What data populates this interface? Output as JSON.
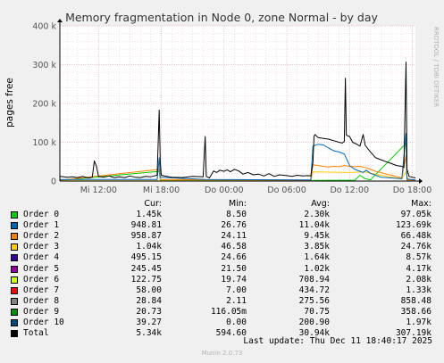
{
  "colors": {
    "background": "#f0f0f0",
    "plot_bg": "#ffffff",
    "grid_major": "#e8b8b8",
    "grid_minor": "#f0d0d0",
    "axis": "#000000",
    "title": "#333333",
    "side_text": "#b0b0b0",
    "footer": "#b4b4b4"
  },
  "chart_data": {
    "type": "line",
    "title": "Memory fragmentation in Node 0, zone Normal - by day",
    "ylabel": "pages free",
    "xlabel": "",
    "ylim": [
      0,
      400000
    ],
    "xlim_hours_since_mi_1200": [
      -3.7,
      30.3
    ],
    "y_ticks": [
      {
        "value": 0,
        "label": "0"
      },
      {
        "value": 100000,
        "label": "100 k"
      },
      {
        "value": 200000,
        "label": "200 k"
      },
      {
        "value": 300000,
        "label": "300 k"
      },
      {
        "value": 400000,
        "label": "400 k"
      }
    ],
    "x_ticks": [
      {
        "hour": 0,
        "label": "Mi 12:00"
      },
      {
        "hour": 6,
        "label": "Mi 18:00"
      },
      {
        "hour": 12,
        "label": "Do 00:00"
      },
      {
        "hour": 18,
        "label": "Do 06:00"
      },
      {
        "hour": 24,
        "label": "Do 12:00"
      },
      {
        "hour": 30,
        "label": "Do 18:00"
      }
    ],
    "grid": true,
    "series": [
      {
        "name": "Total",
        "color": "#000000",
        "width": 1,
        "points": [
          [
            -3.7,
            12000
          ],
          [
            -3.0,
            10000
          ],
          [
            -2.5,
            11000
          ],
          [
            -2.0,
            9000
          ],
          [
            -1.5,
            12000
          ],
          [
            -1.0,
            8000
          ],
          [
            -0.6,
            10000
          ],
          [
            -0.4,
            52000
          ],
          [
            -0.2,
            38000
          ],
          [
            0.0,
            12000
          ],
          [
            0.5,
            10000
          ],
          [
            1.0,
            13000
          ],
          [
            1.5,
            9000
          ],
          [
            2.0,
            11000
          ],
          [
            2.5,
            9000
          ],
          [
            3.0,
            13000
          ],
          [
            3.5,
            10000
          ],
          [
            4.0,
            9000
          ],
          [
            4.5,
            12000
          ],
          [
            5.0,
            11000
          ],
          [
            5.3,
            13000
          ],
          [
            5.6,
            15000
          ],
          [
            5.8,
            183000
          ],
          [
            5.9,
            48000
          ],
          [
            6.0,
            15000
          ],
          [
            6.5,
            12000
          ],
          [
            7.0,
            10000
          ],
          [
            8.0,
            9000
          ],
          [
            9.0,
            12000
          ],
          [
            10.0,
            11000
          ],
          [
            10.2,
            115000
          ],
          [
            10.3,
            12000
          ],
          [
            10.6,
            8000
          ],
          [
            11.0,
            26000
          ],
          [
            11.3,
            22000
          ],
          [
            11.6,
            28000
          ],
          [
            12.0,
            25000
          ],
          [
            12.3,
            29000
          ],
          [
            12.6,
            24000
          ],
          [
            13.0,
            30000
          ],
          [
            13.4,
            26000
          ],
          [
            13.8,
            18000
          ],
          [
            14.3,
            22000
          ],
          [
            14.8,
            16000
          ],
          [
            15.3,
            18000
          ],
          [
            15.8,
            13000
          ],
          [
            16.3,
            19000
          ],
          [
            16.8,
            12000
          ],
          [
            17.3,
            16000
          ],
          [
            18.0,
            14000
          ],
          [
            18.5,
            12000
          ],
          [
            19.0,
            15000
          ],
          [
            19.5,
            13000
          ],
          [
            20.0,
            14000
          ],
          [
            20.3,
            13000
          ],
          [
            20.5,
            48000
          ],
          [
            20.6,
            115000
          ],
          [
            20.7,
            120000
          ],
          [
            21.0,
            112000
          ],
          [
            21.5,
            110000
          ],
          [
            22.0,
            108000
          ],
          [
            22.5,
            104000
          ],
          [
            23.0,
            100000
          ],
          [
            23.3,
            98000
          ],
          [
            23.5,
            102000
          ],
          [
            23.6,
            265000
          ],
          [
            23.7,
            118000
          ],
          [
            24.0,
            115000
          ],
          [
            24.3,
            100000
          ],
          [
            24.7,
            95000
          ],
          [
            25.0,
            90000
          ],
          [
            25.3,
            120000
          ],
          [
            25.5,
            92000
          ],
          [
            26.0,
            75000
          ],
          [
            26.5,
            60000
          ],
          [
            27.0,
            55000
          ],
          [
            27.5,
            50000
          ],
          [
            28.0,
            45000
          ],
          [
            28.5,
            40000
          ],
          [
            29.0,
            38000
          ],
          [
            29.2,
            35000
          ],
          [
            29.4,
            307000
          ],
          [
            29.5,
            30000
          ],
          [
            29.7,
            12000
          ],
          [
            30.0,
            10000
          ],
          [
            30.3,
            8000
          ]
        ]
      },
      {
        "name": "Order 1",
        "color": "#0066b3",
        "width": 1,
        "points": [
          [
            -3.7,
            4000
          ],
          [
            5.6,
            4000
          ],
          [
            5.8,
            60000
          ],
          [
            5.9,
            10000
          ],
          [
            10.2,
            4000
          ],
          [
            20.3,
            3000
          ],
          [
            20.5,
            90000
          ],
          [
            21.0,
            95000
          ],
          [
            21.5,
            93000
          ],
          [
            22.0,
            85000
          ],
          [
            22.5,
            78000
          ],
          [
            23.0,
            75000
          ],
          [
            23.5,
            70000
          ],
          [
            24.0,
            40000
          ],
          [
            24.5,
            30000
          ],
          [
            25.0,
            25000
          ],
          [
            25.3,
            22000
          ],
          [
            25.6,
            28000
          ],
          [
            26.0,
            20000
          ],
          [
            26.5,
            15000
          ],
          [
            27.0,
            10000
          ],
          [
            28.0,
            8000
          ],
          [
            29.0,
            6000
          ],
          [
            29.4,
            123000
          ],
          [
            29.5,
            5000
          ],
          [
            30.3,
            3000
          ]
        ]
      },
      {
        "name": "Order 2",
        "color": "#ff8000",
        "width": 1,
        "points": [
          [
            -3.7,
            2000
          ],
          [
            5.8,
            30000
          ],
          [
            5.9,
            4000
          ],
          [
            20.3,
            2000
          ],
          [
            20.5,
            42000
          ],
          [
            21.0,
            40000
          ],
          [
            21.5,
            38000
          ],
          [
            22.0,
            36000
          ],
          [
            22.5,
            38000
          ],
          [
            23.0,
            37000
          ],
          [
            23.5,
            40000
          ],
          [
            24.0,
            38000
          ],
          [
            24.5,
            37000
          ],
          [
            25.0,
            38000
          ],
          [
            25.3,
            36000
          ],
          [
            25.6,
            34000
          ],
          [
            26.0,
            30000
          ],
          [
            26.5,
            25000
          ],
          [
            27.0,
            22000
          ],
          [
            27.5,
            18000
          ],
          [
            28.0,
            15000
          ],
          [
            29.0,
            8000
          ],
          [
            29.4,
            66000
          ],
          [
            29.5,
            3000
          ],
          [
            30.3,
            2000
          ]
        ]
      },
      {
        "name": "Order 3",
        "color": "#ffcc00",
        "width": 1,
        "points": [
          [
            -3.7,
            1000
          ],
          [
            20.3,
            1000
          ],
          [
            20.5,
            24000
          ],
          [
            22.0,
            23000
          ],
          [
            24.0,
            22000
          ],
          [
            25.5,
            24000
          ],
          [
            26.0,
            20000
          ],
          [
            27.0,
            15000
          ],
          [
            28.0,
            10000
          ],
          [
            29.0,
            6000
          ],
          [
            29.4,
            24000
          ],
          [
            29.6,
            2000
          ],
          [
            30.3,
            1000
          ]
        ]
      },
      {
        "name": "Order 0",
        "color": "#00cc00",
        "width": 1,
        "points": [
          [
            -3.7,
            1500
          ],
          [
            5.8,
            25000
          ],
          [
            5.9,
            2000
          ],
          [
            20.3,
            1500
          ],
          [
            24.5,
            2000
          ],
          [
            25.0,
            15000
          ],
          [
            25.5,
            6000
          ],
          [
            26.0,
            3000
          ],
          [
            29.4,
            97000
          ],
          [
            29.5,
            2000
          ],
          [
            30.3,
            1500
          ]
        ]
      }
    ]
  },
  "side_text": "RRDTOOL / TOBI OETIKER",
  "legend": {
    "headers": {
      "cur": "Cur:",
      "min": "Min:",
      "avg": "Avg:",
      "max": "Max:"
    },
    "rows": [
      {
        "name": "Order 0",
        "color": "#00cc00",
        "cur": "1.45k",
        "min": "8.50",
        "avg": "2.30k",
        "max": "97.05k"
      },
      {
        "name": "Order 1",
        "color": "#0066b3",
        "cur": "948.81",
        "min": "26.76",
        "avg": "11.04k",
        "max": "123.69k"
      },
      {
        "name": "Order 2",
        "color": "#ff8000",
        "cur": "958.87",
        "min": "24.11",
        "avg": "9.45k",
        "max": "66.48k"
      },
      {
        "name": "Order 3",
        "color": "#ffcc00",
        "cur": "1.04k",
        "min": "46.58",
        "avg": "3.85k",
        "max": "24.76k"
      },
      {
        "name": "Order 4",
        "color": "#330099",
        "cur": "495.15",
        "min": "24.66",
        "avg": "1.64k",
        "max": "8.57k"
      },
      {
        "name": "Order 5",
        "color": "#990099",
        "cur": "245.45",
        "min": "21.50",
        "avg": "1.02k",
        "max": "4.17k"
      },
      {
        "name": "Order 6",
        "color": "#ccff00",
        "cur": "122.75",
        "min": "19.74",
        "avg": "708.94",
        "max": "2.08k"
      },
      {
        "name": "Order 7",
        "color": "#ff0000",
        "cur": "58.00",
        "min": "7.00",
        "avg": "434.72",
        "max": "1.33k"
      },
      {
        "name": "Order 8",
        "color": "#808080",
        "cur": "28.84",
        "min": "2.11",
        "avg": "275.56",
        "max": "858.48"
      },
      {
        "name": "Order 9",
        "color": "#008f00",
        "cur": "20.73",
        "min": "116.05m",
        "avg": "70.75",
        "max": "358.66"
      },
      {
        "name": "Order 10",
        "color": "#00487d",
        "cur": "39.27",
        "min": "0.00",
        "avg": "200.90",
        "max": "1.97k"
      },
      {
        "name": "Total",
        "color": "#000000",
        "cur": "5.34k",
        "min": "594.60",
        "avg": "30.94k",
        "max": "307.19k"
      }
    ]
  },
  "last_update": "Last update: Thu Dec 11 18:40:17 2025",
  "footer": "Munin 2.0.73"
}
